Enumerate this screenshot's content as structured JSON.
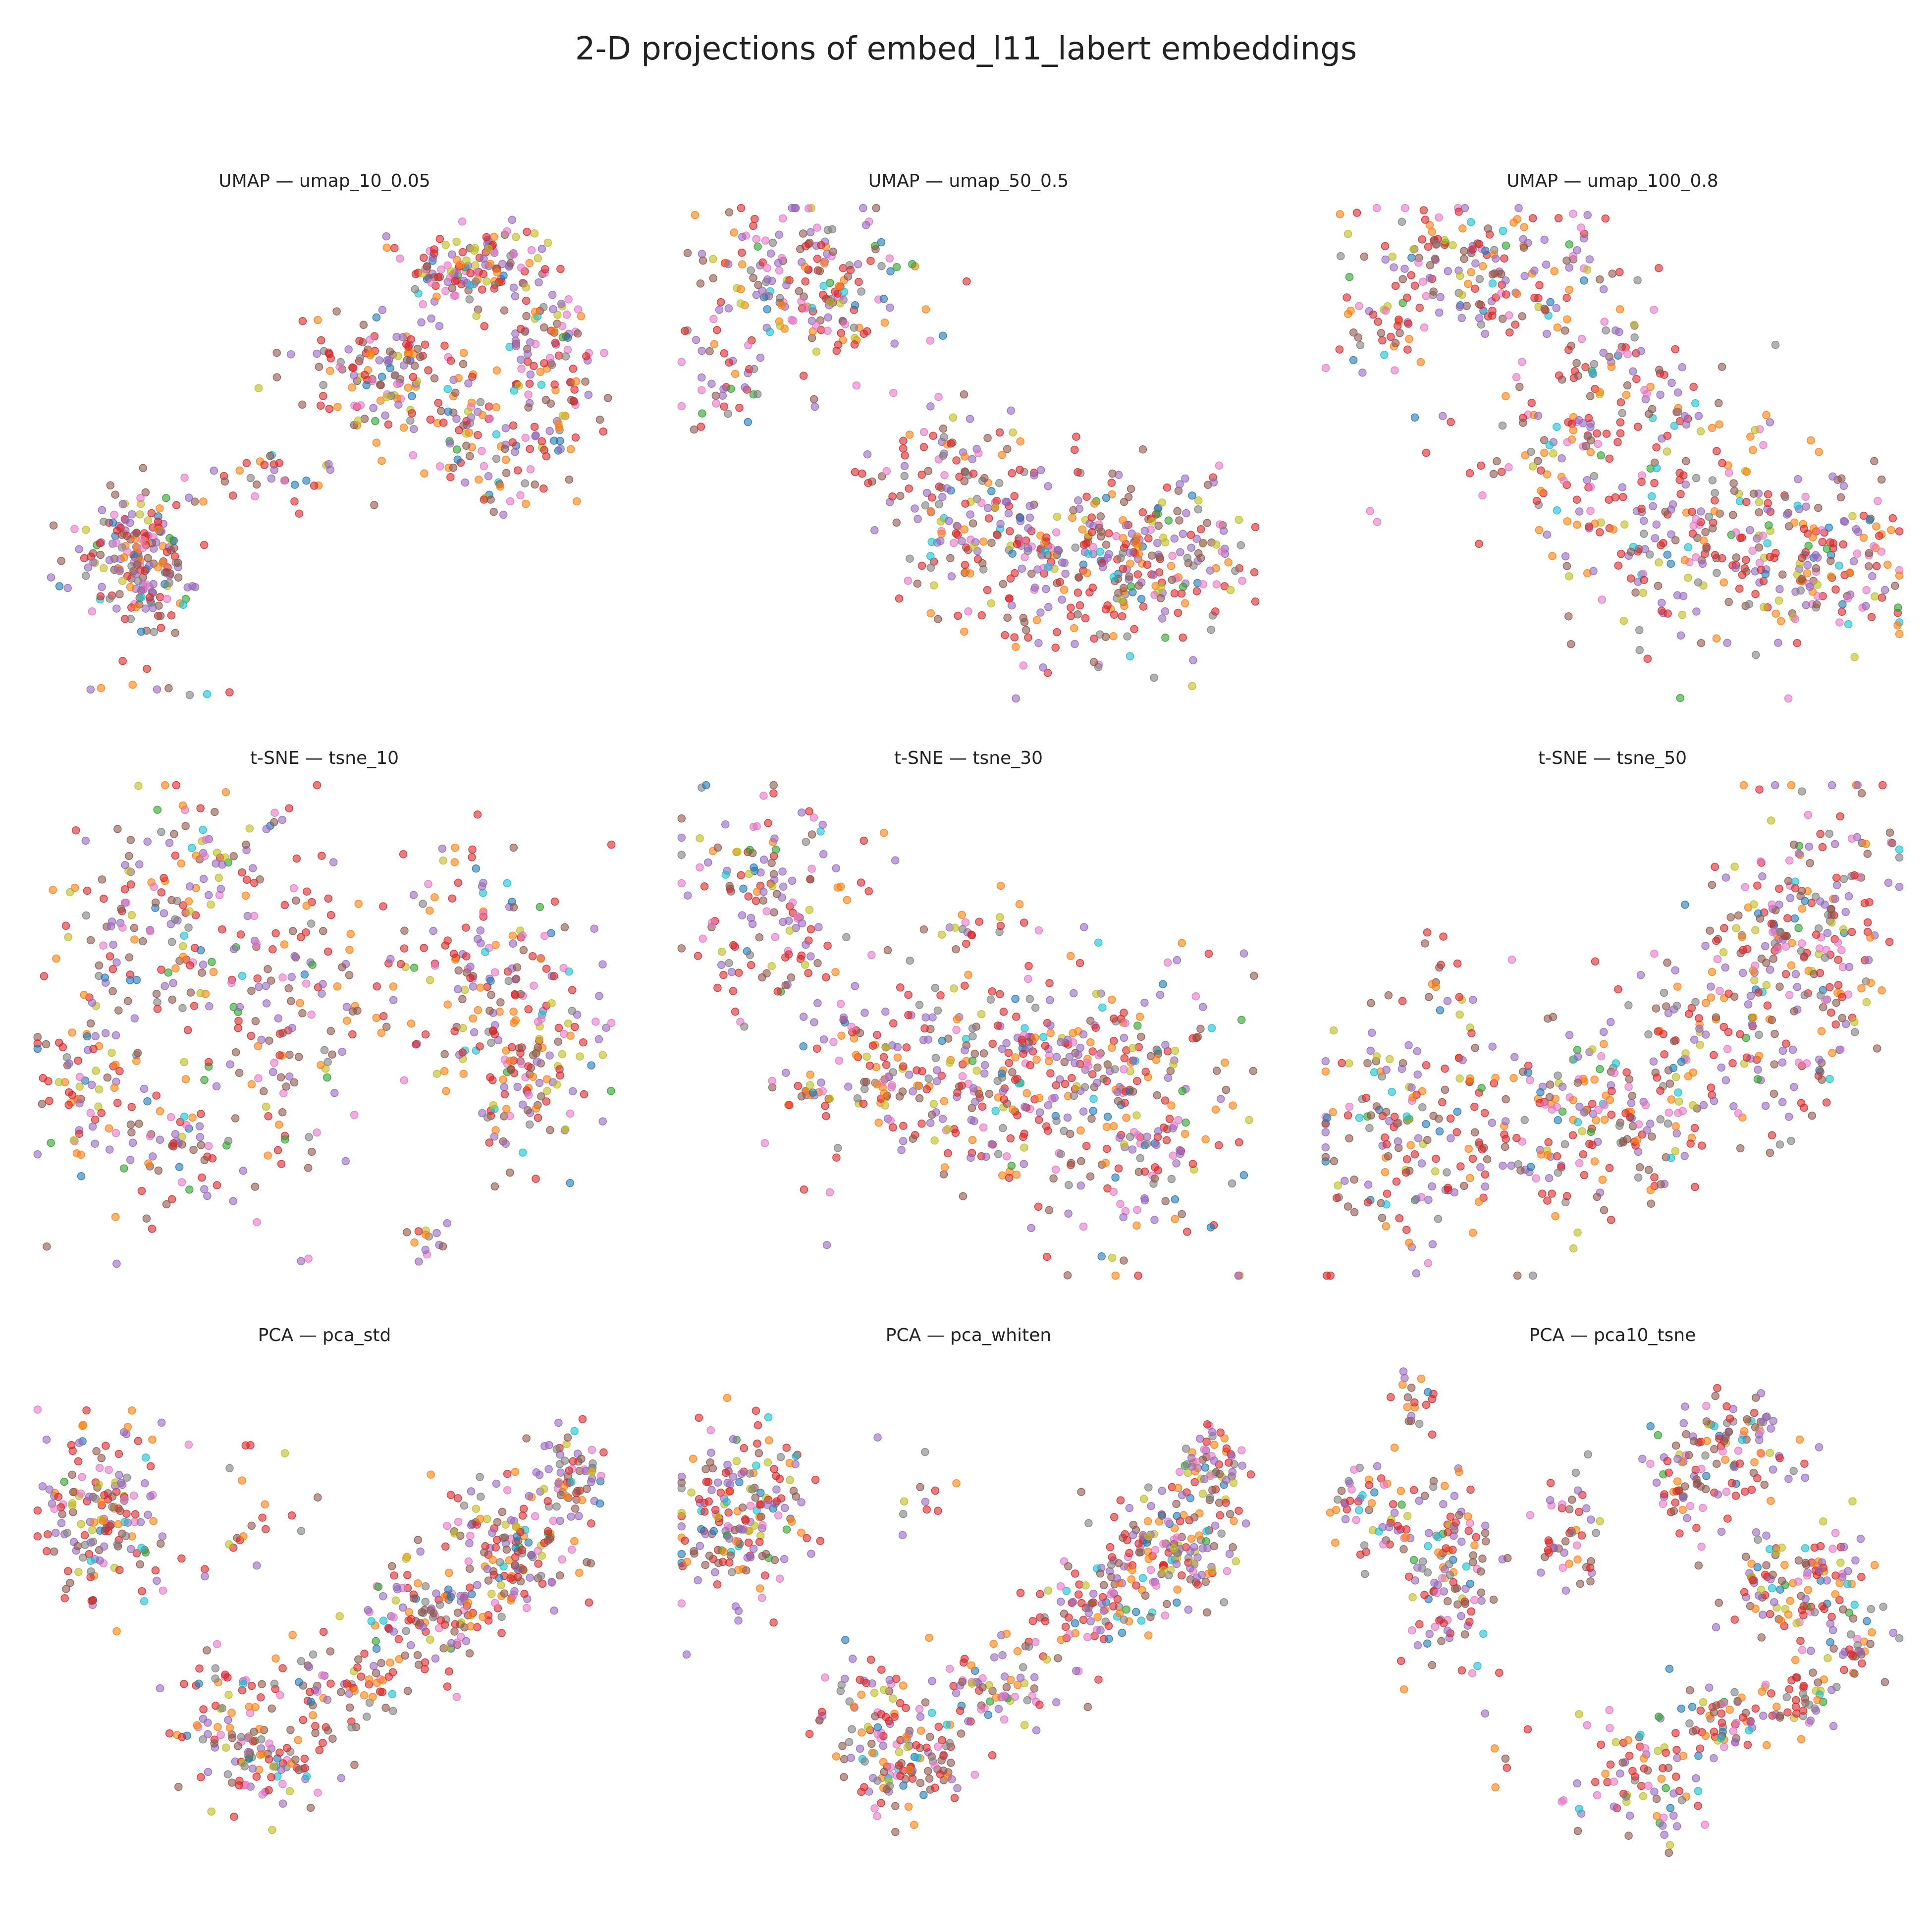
{
  "title": "2-D projections of embed_l11_labert embeddings",
  "palette": [
    "#1f77b4",
    "#ff7f0e",
    "#2ca02c",
    "#d62728",
    "#9467bd",
    "#8c564b",
    "#e377c2",
    "#7f7f7f",
    "#bcbd22",
    "#17becf"
  ],
  "class_weights": [
    0.03,
    0.12,
    0.015,
    0.24,
    0.19,
    0.16,
    0.1,
    0.06,
    0.06,
    0.025
  ],
  "chart_data": [
    {
      "type": "scatter",
      "title": "UMAP — umap_10_0.05",
      "axes": "off",
      "grid": false,
      "n_points": 700,
      "xlim": [
        0,
        100
      ],
      "ylim": [
        0,
        100
      ],
      "clusters": [
        {
          "x": 17,
          "y": 70,
          "sx": 5,
          "sy": 6,
          "w": 0.22
        },
        {
          "x": 20,
          "y": 82,
          "sx": 3,
          "sy": 3,
          "w": 0.04
        },
        {
          "x": 58,
          "y": 32,
          "sx": 7,
          "sy": 5,
          "w": 0.12
        },
        {
          "x": 66,
          "y": 37,
          "sx": 7,
          "sy": 8,
          "w": 0.09
        },
        {
          "x": 73,
          "y": 13,
          "sx": 5,
          "sy": 4,
          "w": 0.12
        },
        {
          "x": 83,
          "y": 12,
          "sx": 5,
          "sy": 5,
          "w": 0.08
        },
        {
          "x": 91,
          "y": 40,
          "sx": 4,
          "sy": 7,
          "w": 0.08
        },
        {
          "x": 79,
          "y": 50,
          "sx": 5,
          "sy": 6,
          "w": 0.08
        },
        {
          "x": 88,
          "y": 28,
          "sx": 4,
          "sy": 5,
          "w": 0.07
        },
        {
          "x": 40,
          "y": 55,
          "sx": 9,
          "sy": 3,
          "w": 0.03
        },
        {
          "x": 18,
          "y": 97,
          "sx": 5,
          "sy": 1.5,
          "w": 0.01
        }
      ]
    },
    {
      "type": "scatter",
      "title": "UMAP — umap_50_0.5",
      "axes": "off",
      "grid": false,
      "n_points": 700,
      "xlim": [
        0,
        100
      ],
      "ylim": [
        0,
        100
      ],
      "clusters": [
        {
          "x": 22,
          "y": 16,
          "sx": 9,
          "sy": 8,
          "w": 0.28
        },
        {
          "x": 9,
          "y": 35,
          "sx": 5,
          "sy": 5,
          "w": 0.05
        },
        {
          "x": 40,
          "y": 48,
          "sx": 7,
          "sy": 6,
          "w": 0.04
        },
        {
          "x": 50,
          "y": 60,
          "sx": 9,
          "sy": 10,
          "w": 0.2
        },
        {
          "x": 68,
          "y": 75,
          "sx": 10,
          "sy": 9,
          "w": 0.22
        },
        {
          "x": 84,
          "y": 70,
          "sx": 8,
          "sy": 9,
          "w": 0.21
        }
      ]
    },
    {
      "type": "scatter",
      "title": "UMAP — umap_100_0.8",
      "axes": "off",
      "grid": false,
      "n_points": 700,
      "xlim": [
        0,
        100
      ],
      "ylim": [
        0,
        100
      ],
      "clusters": [
        {
          "x": 30,
          "y": 13,
          "sx": 12,
          "sy": 7,
          "w": 0.26
        },
        {
          "x": 10,
          "y": 28,
          "sx": 4,
          "sy": 4,
          "w": 0.03
        },
        {
          "x": 47,
          "y": 47,
          "sx": 12,
          "sy": 10,
          "w": 0.24
        },
        {
          "x": 67,
          "y": 70,
          "sx": 12,
          "sy": 10,
          "w": 0.27
        },
        {
          "x": 88,
          "y": 73,
          "sx": 7,
          "sy": 9,
          "w": 0.17
        },
        {
          "x": 50,
          "y": 30,
          "sx": 6,
          "sy": 4,
          "w": 0.03
        }
      ]
    },
    {
      "type": "scatter",
      "title": "t-SNE — tsne_10",
      "axes": "off",
      "grid": false,
      "n_points": 700,
      "xlim": [
        0,
        100
      ],
      "ylim": [
        0,
        100
      ],
      "clusters": [
        {
          "x": 20,
          "y": 30,
          "sx": 8,
          "sy": 12,
          "w": 0.18
        },
        {
          "x": 8,
          "y": 58,
          "sx": 5,
          "sy": 7,
          "w": 0.07
        },
        {
          "x": 22,
          "y": 75,
          "sx": 9,
          "sy": 8,
          "w": 0.12
        },
        {
          "x": 45,
          "y": 45,
          "sx": 9,
          "sy": 16,
          "w": 0.2
        },
        {
          "x": 78,
          "y": 40,
          "sx": 8,
          "sy": 12,
          "w": 0.2
        },
        {
          "x": 85,
          "y": 60,
          "sx": 6,
          "sy": 9,
          "w": 0.14
        },
        {
          "x": 67,
          "y": 93,
          "sx": 2.5,
          "sy": 2.5,
          "w": 0.03
        },
        {
          "x": 32,
          "y": 12,
          "sx": 6,
          "sy": 5,
          "w": 0.06
        }
      ]
    },
    {
      "type": "scatter",
      "title": "t-SNE — tsne_30",
      "axes": "off",
      "grid": false,
      "n_points": 700,
      "xlim": [
        0,
        100
      ],
      "ylim": [
        0,
        100
      ],
      "clusters": [
        {
          "x": 15,
          "y": 25,
          "sx": 8,
          "sy": 12,
          "w": 0.22
        },
        {
          "x": 22,
          "y": 63,
          "sx": 2.5,
          "sy": 2.5,
          "w": 0.03
        },
        {
          "x": 55,
          "y": 60,
          "sx": 13,
          "sy": 12,
          "w": 0.33
        },
        {
          "x": 80,
          "y": 65,
          "sx": 10,
          "sy": 14,
          "w": 0.3
        },
        {
          "x": 35,
          "y": 55,
          "sx": 5,
          "sy": 6,
          "w": 0.05
        },
        {
          "x": 50,
          "y": 30,
          "sx": 6,
          "sy": 4,
          "w": 0.02
        }
      ]
    },
    {
      "type": "scatter",
      "title": "t-SNE — tsne_50",
      "axes": "off",
      "grid": false,
      "n_points": 700,
      "xlim": [
        0,
        100
      ],
      "ylim": [
        0,
        100
      ],
      "clusters": [
        {
          "x": 15,
          "y": 70,
          "sx": 9,
          "sy": 14,
          "w": 0.25
        },
        {
          "x": 22,
          "y": 42,
          "sx": 2,
          "sy": 4,
          "w": 0.02
        },
        {
          "x": 45,
          "y": 70,
          "sx": 10,
          "sy": 11,
          "w": 0.25
        },
        {
          "x": 65,
          "y": 55,
          "sx": 10,
          "sy": 10,
          "w": 0.18
        },
        {
          "x": 85,
          "y": 30,
          "sx": 7,
          "sy": 15,
          "w": 0.25
        },
        {
          "x": 75,
          "y": 30,
          "sx": 5,
          "sy": 5,
          "w": 0.05
        }
      ]
    },
    {
      "type": "scatter",
      "title": "PCA — pca_std",
      "axes": "off",
      "grid": false,
      "n_points": 700,
      "xlim": [
        0,
        100
      ],
      "ylim": [
        0,
        100
      ],
      "clusters": [
        {
          "x": 11,
          "y": 32,
          "sx": 6,
          "sy": 9,
          "w": 0.24
        },
        {
          "x": 40,
          "y": 80,
          "sx": 5,
          "sy": 5,
          "w": 0.15
        },
        {
          "x": 53,
          "y": 65,
          "sx": 7,
          "sy": 5,
          "w": 0.1
        },
        {
          "x": 68,
          "y": 52,
          "sx": 6,
          "sy": 5,
          "w": 0.13
        },
        {
          "x": 82,
          "y": 38,
          "sx": 6,
          "sy": 6,
          "w": 0.2
        },
        {
          "x": 92,
          "y": 22,
          "sx": 3,
          "sy": 4,
          "w": 0.08
        },
        {
          "x": 32,
          "y": 68,
          "sx": 5,
          "sy": 5,
          "w": 0.05
        },
        {
          "x": 40,
          "y": 30,
          "sx": 6,
          "sy": 6,
          "w": 0.02
        }
      ]
    },
    {
      "type": "scatter",
      "title": "PCA — pca_whiten",
      "axes": "off",
      "grid": false,
      "n_points": 700,
      "xlim": [
        0,
        100
      ],
      "ylim": [
        0,
        100
      ],
      "clusters": [
        {
          "x": 11,
          "y": 32,
          "sx": 6,
          "sy": 9,
          "w": 0.24
        },
        {
          "x": 40,
          "y": 82,
          "sx": 5,
          "sy": 5,
          "w": 0.15
        },
        {
          "x": 56,
          "y": 66,
          "sx": 7,
          "sy": 5,
          "w": 0.1
        },
        {
          "x": 72,
          "y": 50,
          "sx": 6,
          "sy": 5,
          "w": 0.13
        },
        {
          "x": 84,
          "y": 38,
          "sx": 6,
          "sy": 6,
          "w": 0.2
        },
        {
          "x": 92,
          "y": 22,
          "sx": 3,
          "sy": 4,
          "w": 0.08
        },
        {
          "x": 32,
          "y": 70,
          "sx": 5,
          "sy": 5,
          "w": 0.05
        },
        {
          "x": 40,
          "y": 30,
          "sx": 6,
          "sy": 6,
          "w": 0.02
        }
      ]
    },
    {
      "type": "scatter",
      "title": "PCA — pca10_tsne",
      "axes": "off",
      "grid": false,
      "n_points": 700,
      "xlim": [
        0,
        100
      ],
      "ylim": [
        0,
        100
      ],
      "clusters": [
        {
          "x": 8,
          "y": 30,
          "sx": 4,
          "sy": 5,
          "w": 0.08
        },
        {
          "x": 22,
          "y": 42,
          "sx": 4,
          "sy": 10,
          "w": 0.16
        },
        {
          "x": 16,
          "y": 8,
          "sx": 2,
          "sy": 3,
          "w": 0.03
        },
        {
          "x": 62,
          "y": 25,
          "sx": 3,
          "sy": 5,
          "w": 0.07
        },
        {
          "x": 72,
          "y": 18,
          "sx": 5,
          "sy": 6,
          "w": 0.1
        },
        {
          "x": 83,
          "y": 45,
          "sx": 7,
          "sy": 6,
          "w": 0.18
        },
        {
          "x": 42,
          "y": 35,
          "sx": 3,
          "sy": 6,
          "w": 0.06
        },
        {
          "x": 55,
          "y": 85,
          "sx": 6,
          "sy": 7,
          "w": 0.14
        },
        {
          "x": 70,
          "y": 72,
          "sx": 5,
          "sy": 4,
          "w": 0.07
        },
        {
          "x": 83,
          "y": 68,
          "sx": 3,
          "sy": 4,
          "w": 0.05
        },
        {
          "x": 92,
          "y": 58,
          "sx": 3,
          "sy": 3,
          "w": 0.04
        },
        {
          "x": 35,
          "y": 82,
          "sx": 5,
          "sy": 6,
          "w": 0.02
        }
      ]
    }
  ]
}
